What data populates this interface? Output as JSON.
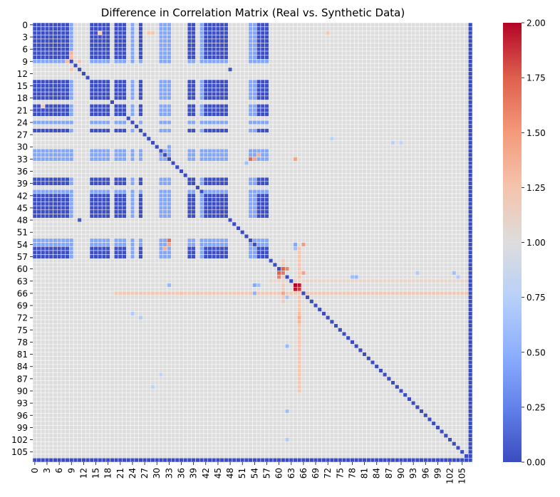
{
  "chart_data": {
    "type": "heatmap",
    "title": "Difference in Correlation Matrix (Real vs. Synthetic Data)",
    "xlabel": "",
    "ylabel": "",
    "n": 108,
    "tick_labels": [
      "0",
      "3",
      "6",
      "9",
      "12",
      "15",
      "18",
      "21",
      "24",
      "27",
      "30",
      "33",
      "36",
      "39",
      "42",
      "45",
      "48",
      "51",
      "54",
      "57",
      "60",
      "63",
      "66",
      "69",
      "72",
      "75",
      "78",
      "81",
      "84",
      "87",
      "90",
      "93",
      "96",
      "99",
      "102",
      "105"
    ],
    "tick_step": 3,
    "colormap": "coolwarm",
    "colormap_stops": [
      "#3b4cc0",
      "#6282ea",
      "#8db0fe",
      "#b8d0f9",
      "#dddddd",
      "#f5c4ac",
      "#f49a7b",
      "#de604d",
      "#b40426"
    ],
    "vmin": 0,
    "vmax": 2,
    "colorbar_ticks": [
      "0.00",
      "0.25",
      "0.50",
      "0.75",
      "1.00",
      "1.25",
      "1.50",
      "1.75",
      "2.00"
    ],
    "default_value": 1.0,
    "diagonal_value": 0.0,
    "low_block_indices": [
      0,
      1,
      2,
      3,
      4,
      5,
      6,
      7,
      8,
      9,
      14,
      15,
      16,
      17,
      18,
      20,
      21,
      22,
      24,
      26,
      31,
      32,
      33,
      38,
      39,
      41,
      42,
      43,
      44,
      45,
      46,
      47,
      53,
      54,
      55,
      56,
      57
    ],
    "low_block_value": 0.02,
    "mid_block_indices": [
      9,
      24,
      31,
      32,
      33,
      41,
      53,
      54
    ],
    "mid_block_value": 0.45,
    "zero_columns": [
      107
    ],
    "zero_rows": [
      107
    ],
    "highlight_cells": [
      {
        "i": 64,
        "j": 64,
        "v": 2.0
      },
      {
        "i": 64,
        "j": 65,
        "v": 1.95
      },
      {
        "i": 65,
        "j": 64,
        "v": 1.95
      },
      {
        "i": 65,
        "j": 65,
        "v": 1.85
      },
      {
        "i": 60,
        "j": 61,
        "v": 1.75
      },
      {
        "i": 61,
        "j": 60,
        "v": 1.75
      },
      {
        "i": 60,
        "j": 62,
        "v": 1.6
      },
      {
        "i": 62,
        "j": 60,
        "v": 1.6
      },
      {
        "i": 61,
        "j": 61,
        "v": 1.65
      },
      {
        "i": 53,
        "j": 33,
        "v": 1.7
      },
      {
        "i": 33,
        "j": 53,
        "v": 1.7
      },
      {
        "i": 54,
        "j": 33,
        "v": 1.45
      },
      {
        "i": 33,
        "j": 54,
        "v": 1.45
      },
      {
        "i": 32,
        "j": 55,
        "v": 1.4
      },
      {
        "i": 55,
        "j": 32,
        "v": 1.4
      },
      {
        "i": 54,
        "j": 64,
        "v": 0.45
      },
      {
        "i": 64,
        "j": 54,
        "v": 0.45
      },
      {
        "i": 55,
        "j": 64,
        "v": 0.6
      },
      {
        "i": 64,
        "j": 55,
        "v": 0.6
      },
      {
        "i": 33,
        "j": 64,
        "v": 1.45
      },
      {
        "i": 64,
        "j": 33,
        "v": 0.55
      },
      {
        "i": 54,
        "j": 66,
        "v": 1.5
      },
      {
        "i": 66,
        "j": 54,
        "v": 0.5
      },
      {
        "i": 66,
        "j": 61,
        "v": 1.45
      },
      {
        "i": 61,
        "j": 66,
        "v": 1.45
      },
      {
        "i": 7,
        "j": 9,
        "v": 1.35
      },
      {
        "i": 8,
        "j": 9,
        "v": 1.3
      },
      {
        "i": 9,
        "j": 8,
        "v": 1.3
      },
      {
        "i": 11,
        "j": 9,
        "v": 1.25
      },
      {
        "i": 9,
        "j": 11,
        "v": 1.25
      },
      {
        "i": 72,
        "j": 65,
        "v": 1.4
      },
      {
        "i": 73,
        "j": 65,
        "v": 1.35
      },
      {
        "i": 71,
        "j": 65,
        "v": 1.3
      },
      {
        "i": 79,
        "j": 62,
        "v": 0.55
      },
      {
        "i": 62,
        "j": 79,
        "v": 0.55
      },
      {
        "i": 11,
        "j": 48,
        "v": 0.05
      },
      {
        "i": 48,
        "j": 11,
        "v": 0.05
      },
      {
        "i": 95,
        "j": 62,
        "v": 0.6
      },
      {
        "i": 102,
        "j": 62,
        "v": 0.7
      },
      {
        "i": 67,
        "j": 62,
        "v": 0.65
      },
      {
        "i": 71,
        "j": 24,
        "v": 0.7
      },
      {
        "i": 72,
        "j": 26,
        "v": 0.7
      },
      {
        "i": 62,
        "j": 78,
        "v": 0.6
      },
      {
        "i": 61,
        "j": 103,
        "v": 0.6
      },
      {
        "i": 62,
        "j": 104,
        "v": 0.7
      },
      {
        "i": 61,
        "j": 94,
        "v": 0.7
      },
      {
        "i": 28,
        "j": 73,
        "v": 0.75
      },
      {
        "i": 29,
        "j": 88,
        "v": 0.75
      },
      {
        "i": 29,
        "j": 90,
        "v": 0.8
      },
      {
        "i": 86,
        "j": 31,
        "v": 0.8
      },
      {
        "i": 89,
        "j": 29,
        "v": 0.8
      },
      {
        "i": 2,
        "j": 28,
        "v": 1.25
      },
      {
        "i": 2,
        "j": 29,
        "v": 1.2
      },
      {
        "i": 2,
        "j": 72,
        "v": 1.2
      },
      {
        "i": 2,
        "j": 16,
        "v": 1.25
      },
      {
        "i": 20,
        "j": 2,
        "v": 1.2
      },
      {
        "i": 30,
        "j": 33,
        "v": 0.45
      },
      {
        "i": 34,
        "j": 52,
        "v": 0.6
      },
      {
        "i": 66,
        "j": 36,
        "v": 1.25
      },
      {
        "i": 66,
        "j": 40,
        "v": 1.25
      }
    ],
    "accent_columns": [
      {
        "index": 65,
        "from": 55,
        "to": 90,
        "value": 1.22
      },
      {
        "index": 61,
        "from": 58,
        "to": 68,
        "value": 1.18
      }
    ],
    "accent_rows": [
      {
        "index": 66,
        "from": 20,
        "to": 106,
        "value": 1.2
      },
      {
        "index": 63,
        "from": 58,
        "to": 106,
        "value": 1.08
      }
    ]
  }
}
